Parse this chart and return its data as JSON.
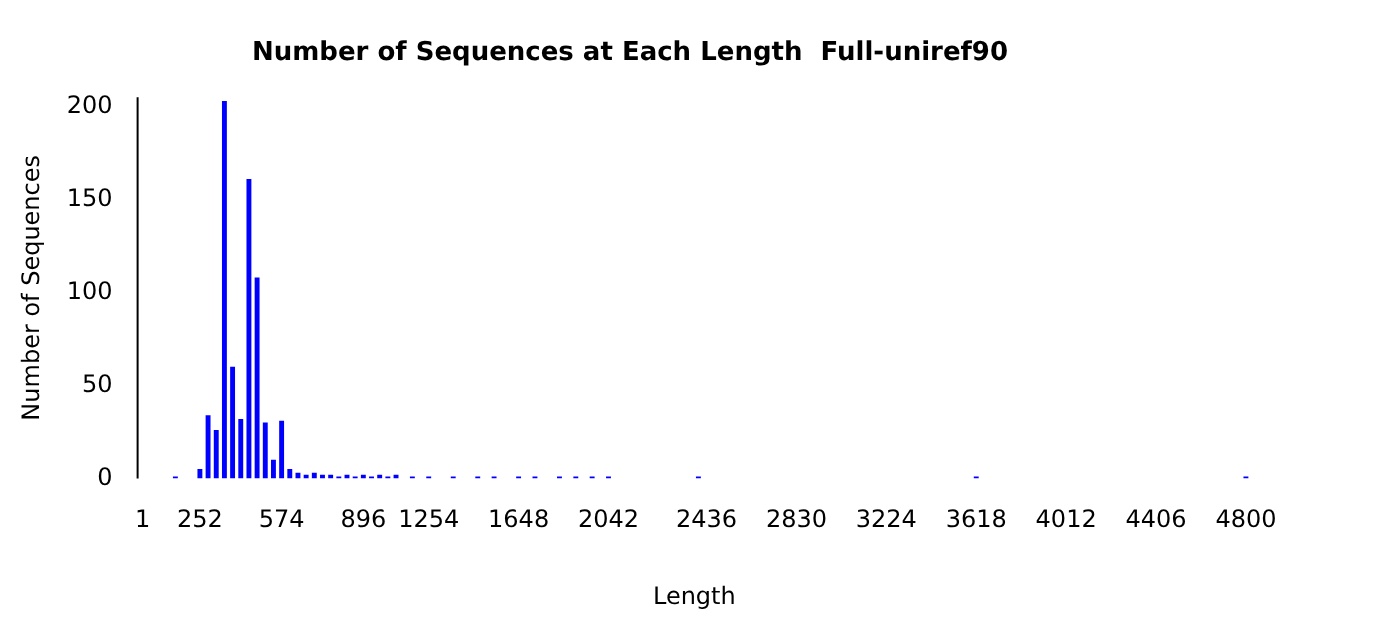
{
  "chart_data": {
    "type": "bar",
    "title": "Number of Sequences at Each Length  Full-uniref90",
    "xlabel": "Length",
    "ylabel": "Number of Sequences",
    "categories": [
      "1",
      null,
      null,
      null,
      null,
      null,
      null,
      "252",
      null,
      null,
      null,
      null,
      null,
      null,
      null,
      null,
      null,
      "574",
      null,
      null,
      null,
      null,
      null,
      null,
      null,
      null,
      null,
      "896",
      null,
      null,
      null,
      null,
      null,
      null,
      null,
      "1254",
      null,
      null,
      null,
      null,
      null,
      null,
      null,
      null,
      null,
      null,
      "1648",
      null,
      null,
      null,
      null,
      null,
      null,
      null,
      null,
      null,
      null,
      "2042",
      null,
      null,
      null,
      null,
      null,
      null,
      null,
      null,
      null,
      null,
      null,
      "2436",
      null,
      null,
      null,
      null,
      null,
      null,
      null,
      null,
      null,
      null,
      "2830",
      null,
      null,
      null,
      null,
      null,
      null,
      null,
      null,
      null,
      null,
      "3224",
      null,
      null,
      null,
      null,
      null,
      null,
      null,
      null,
      null,
      null,
      "3618",
      null,
      null,
      null,
      null,
      null,
      null,
      null,
      null,
      null,
      null,
      "4012",
      null,
      null,
      null,
      null,
      null,
      null,
      null,
      null,
      null,
      null,
      "4406",
      null,
      null,
      null,
      null,
      null,
      null,
      null,
      null,
      null,
      null,
      "4800"
    ],
    "values": [
      null,
      null,
      null,
      null,
      1,
      null,
      null,
      5,
      34,
      26,
      203,
      60,
      32,
      161,
      108,
      30,
      10,
      31,
      5,
      3,
      2,
      3,
      2,
      2,
      1,
      2,
      1,
      2,
      1,
      2,
      1,
      2,
      null,
      1,
      null,
      1,
      null,
      null,
      1,
      null,
      null,
      1,
      null,
      1,
      null,
      null,
      1,
      null,
      1,
      null,
      null,
      1,
      null,
      1,
      null,
      1,
      null,
      1,
      null,
      null,
      null,
      null,
      null,
      null,
      null,
      null,
      null,
      null,
      1,
      null,
      null,
      null,
      null,
      null,
      null,
      null,
      null,
      null,
      null,
      null,
      null,
      null,
      null,
      null,
      null,
      null,
      null,
      null,
      null,
      null,
      null,
      null,
      null,
      null,
      null,
      null,
      null,
      null,
      null,
      null,
      null,
      null,
      1,
      null,
      null,
      null,
      null,
      null,
      null,
      null,
      null,
      null,
      null,
      null,
      null,
      null,
      null,
      null,
      null,
      null,
      null,
      null,
      null,
      null,
      null,
      null,
      null,
      null,
      null,
      null,
      null,
      null,
      null,
      null,
      null,
      1
    ],
    "color": "#0000ff",
    "ylim": [
      0,
      205
    ],
    "yticks": [
      0,
      50,
      100,
      150,
      200
    ],
    "grid": false,
    "legend": false
  }
}
